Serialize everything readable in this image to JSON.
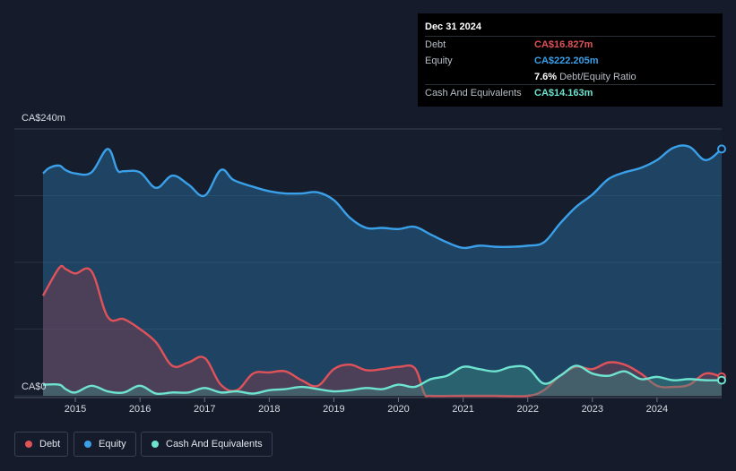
{
  "tooltip": {
    "date": "Dec 31 2024",
    "debt_label": "Debt",
    "debt_value": "CA$16.827m",
    "equity_label": "Equity",
    "equity_value": "CA$222.205m",
    "ratio_value": "7.6%",
    "ratio_label": "Debt/Equity Ratio",
    "cash_label": "Cash And Equivalents",
    "cash_value": "CA$14.163m"
  },
  "legend": {
    "debt": "Debt",
    "equity": "Equity",
    "cash": "Cash And Equivalents"
  },
  "colors": {
    "debt": "#e0525a",
    "equity": "#3aa0ea",
    "cash": "#6ee3cf",
    "background": "#151b2a"
  },
  "chart_data": {
    "type": "area",
    "ylim": [
      0,
      240
    ],
    "y_unit": "CA$m",
    "y_ticks": [
      {
        "value": 240,
        "label": "CA$240m"
      },
      {
        "value": 0,
        "label": "CA$0"
      }
    ],
    "x_ticks": [
      {
        "value": 2015,
        "label": "2015"
      },
      {
        "value": 2016,
        "label": "2016"
      },
      {
        "value": 2017,
        "label": "2017"
      },
      {
        "value": 2018,
        "label": "2018"
      },
      {
        "value": 2019,
        "label": "2019"
      },
      {
        "value": 2020,
        "label": "2020"
      },
      {
        "value": 2021,
        "label": "2021"
      },
      {
        "value": 2022,
        "label": "2022"
      },
      {
        "value": 2023,
        "label": "2023"
      },
      {
        "value": 2024,
        "label": "2024"
      }
    ],
    "xlim": [
      2014.5,
      2025.0
    ],
    "series": [
      {
        "name": "Equity",
        "key": "equity",
        "x": [
          2014.5,
          2014.6,
          2014.75,
          2014.85,
          2015.0,
          2015.25,
          2015.5,
          2015.65,
          2015.75,
          2016.0,
          2016.25,
          2016.5,
          2016.75,
          2017.0,
          2017.25,
          2017.45,
          2017.75,
          2018.0,
          2018.25,
          2018.5,
          2018.75,
          2019.0,
          2019.25,
          2019.5,
          2019.75,
          2020.0,
          2020.25,
          2020.5,
          2020.75,
          2021.0,
          2021.25,
          2021.5,
          2021.75,
          2022.0,
          2022.25,
          2022.5,
          2022.75,
          2023.0,
          2023.25,
          2023.5,
          2023.75,
          2024.0,
          2024.25,
          2024.5,
          2024.75,
          2025.0
        ],
        "values": [
          200,
          205,
          207,
          203,
          200,
          201,
          222,
          203,
          202,
          201,
          187,
          198,
          190,
          180,
          203,
          194,
          188,
          184,
          182,
          182,
          183,
          176,
          160,
          151,
          151,
          150,
          152,
          145,
          138,
          133,
          135,
          134,
          134,
          135,
          138,
          155,
          170,
          181,
          195,
          201,
          205,
          212,
          223,
          224,
          212,
          222
        ]
      },
      {
        "name": "Debt",
        "key": "debt",
        "x": [
          2014.5,
          2014.75,
          2014.85,
          2015.0,
          2015.25,
          2015.5,
          2015.75,
          2016.0,
          2016.25,
          2016.5,
          2016.75,
          2017.0,
          2017.25,
          2017.5,
          2017.75,
          2018.0,
          2018.25,
          2018.5,
          2018.75,
          2019.0,
          2019.25,
          2019.5,
          2019.75,
          2020.0,
          2020.25,
          2020.4,
          2020.5,
          2021.0,
          2021.5,
          2022.0,
          2022.25,
          2022.5,
          2022.75,
          2023.0,
          2023.25,
          2023.5,
          2023.75,
          2024.0,
          2024.25,
          2024.5,
          2024.75,
          2025.0
        ],
        "values": [
          90,
          115,
          114,
          110,
          112,
          71,
          69,
          60,
          48,
          27,
          30,
          34,
          10,
          5,
          20,
          21,
          22,
          14,
          9,
          24,
          28,
          23,
          24,
          26,
          25,
          2,
          0,
          0,
          0,
          0,
          5,
          18,
          26,
          24,
          30,
          28,
          20,
          9,
          8,
          10,
          20,
          17
        ]
      },
      {
        "name": "Cash And Equivalents",
        "key": "cash",
        "x": [
          2014.5,
          2014.75,
          2014.85,
          2015.0,
          2015.25,
          2015.5,
          2015.75,
          2016.0,
          2016.25,
          2016.5,
          2016.75,
          2017.0,
          2017.25,
          2017.5,
          2017.75,
          2018.0,
          2018.25,
          2018.5,
          2018.75,
          2019.0,
          2019.25,
          2019.5,
          2019.75,
          2020.0,
          2020.25,
          2020.5,
          2020.75,
          2021.0,
          2021.25,
          2021.5,
          2021.75,
          2022.0,
          2022.25,
          2022.5,
          2022.75,
          2023.0,
          2023.25,
          2023.5,
          2023.75,
          2024.0,
          2024.25,
          2024.5,
          2024.75,
          2025.0
        ],
        "values": [
          10,
          10,
          6,
          3,
          9,
          4,
          3,
          9,
          2,
          3,
          3,
          7,
          3,
          4,
          2,
          5,
          6,
          8,
          6,
          4,
          5,
          7,
          6,
          10,
          8,
          15,
          18,
          26,
          24,
          22,
          26,
          25,
          11,
          18,
          27,
          20,
          18,
          22,
          15,
          17,
          14,
          15,
          14,
          14
        ]
      }
    ],
    "legend_position": "bottom-left",
    "grid": true
  }
}
